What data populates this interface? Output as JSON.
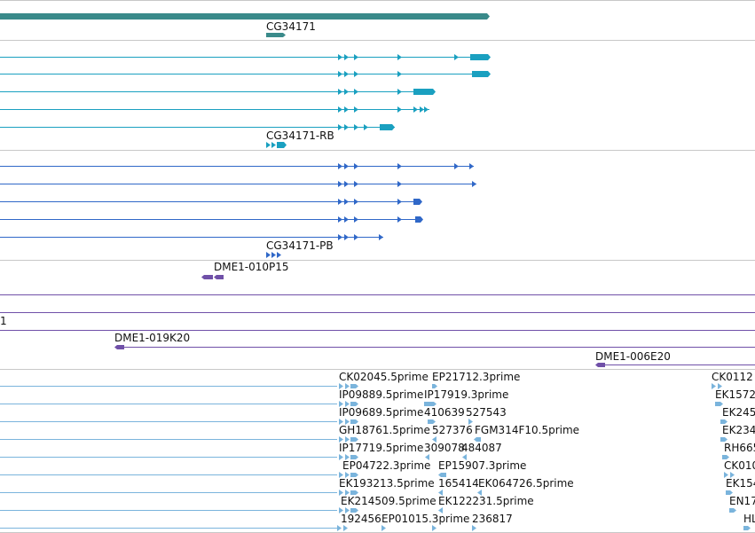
{
  "colors": {
    "gene": "#3a8a8a",
    "mrna": "#1aa0c0",
    "protein": "#3068c8",
    "clone": "#7050a8",
    "est": "#7ab4dc",
    "separator": "#c8c8c8",
    "label": "#111111"
  },
  "tracks": {
    "gene": {
      "label": "CG34171"
    },
    "mrna": {
      "label": "CG34171-RB"
    },
    "protein": {
      "label": "CG34171-PB"
    },
    "clones": {
      "labels": [
        "DME1-010P15",
        "1",
        "DME1-019K20",
        "DME1-006E20"
      ]
    },
    "est": {
      "labels": [
        "CK02045.5prime",
        "EP21712.3prime",
        "CK0112",
        "IP09889.5prime",
        "IP17919.3prime",
        "EK1572",
        "IP09689.5prime",
        "410639",
        "527543",
        "EK245",
        "GH18761.5prime",
        "527376",
        "FGM314F10.5prime",
        "EK234",
        "IP17719.5prime",
        "309078",
        "484087",
        "RH665",
        "EP04722.3prime",
        "EP15907.3prime",
        "CK010",
        "EK193213.5prime",
        "165414",
        "EK064726.5prime",
        "EK154",
        "EK214509.5prime",
        "EK122231.5prime",
        "EN17",
        "192456",
        "EP01015.3prime",
        "236817",
        "HL"
      ]
    }
  }
}
